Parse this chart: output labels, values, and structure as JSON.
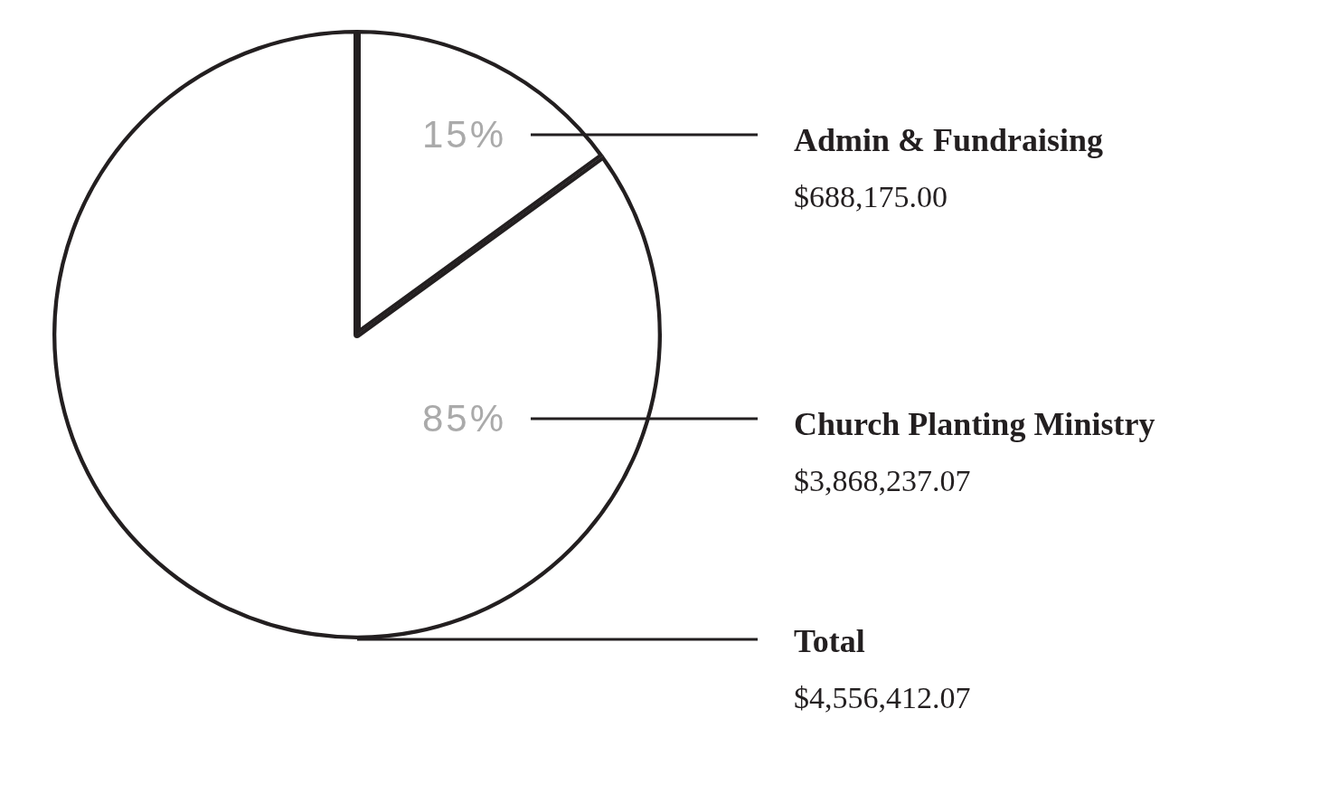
{
  "chart_data": {
    "type": "pie",
    "categories": [
      "Admin & Fundraising",
      "Church Planting Ministry"
    ],
    "values": [
      15,
      85
    ],
    "colors": [
      "#ffffff",
      "#ffffff"
    ],
    "value_labels": [
      "15%",
      "85%"
    ],
    "annotations": [
      "$688,175.00",
      "$3,868,237.07",
      "Total",
      "$4,556,412.07"
    ],
    "legend": false
  }
}
